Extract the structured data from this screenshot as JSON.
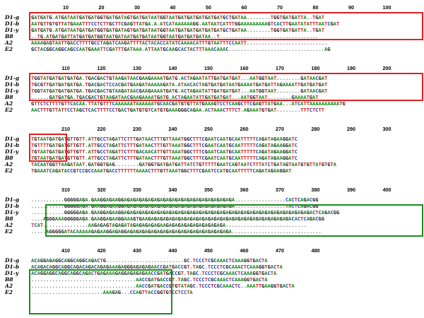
{
  "sequence_labels": [
    "D1-g",
    "D1-b",
    "D1-y",
    "B8",
    "A2",
    "E2"
  ],
  "colors": {
    "A": "#1a8a1a",
    "C": "#1c3fbf",
    "G": "#1a1a1a",
    "T": "#d42020",
    "red_box": "#e02020",
    "green_box": "#1e8a1e"
  },
  "blocks": [
    {
      "ruler": [
        "10",
        "20",
        "30",
        "40",
        "50",
        "60",
        "70",
        "80",
        "90",
        "100"
      ],
      "rows": [
        "GATGATG-ATGATAATGATGATGGTGATGATAGTGATGATAATGGTAATGATGATGATGATGATGCTGATAA--------TGGTGATGATTA--TGAT",
        "AATGTTGTGTTATGAAATTTCCTCTTGCTTCGAGTTATGA-A-ATCATAAAAAAGG-AATAATCATTTGGAAAAAAAAAGTCACTTGAATATATTTAATCGAT",
        "GATGATG-ATGATAATGATGATGGTGATGATAGTGATGATAATGGTAATGATGATGATGATGATGCTGATAA--------TGGTGATGATTA--TGAT",
        "--TG-ATGATGATTATGATGATGGTAATGATAATGATGATAATGGTAATGATGATGATAA--T---------------------------------",
        "AAAAGAGTAATTGACCTTTTGCCTAGATCAAGATTTTACTACACCATATCAAAACATTTGTAATTTCCAATT---------------------------",
        "GCTACGGCAGGCAGCCAATGAAATTCGATTTGATAAA-ATTAATGCAAGCACTACTTTAAACAAAC--------------------------------AG"
      ]
    },
    {
      "ruler": [
        "110",
        "120",
        "130",
        "140",
        "150",
        "160",
        "170",
        "180",
        "190",
        "200"
      ],
      "rows": [
        "TGGTATGATGATGATGA-TGACGACTGTAAGATAACGAAGAAAATGATG-ACTAGAATATTGATGATGAT---AATGGTAAT--------GATAACGAT",
        "TGCGTTGATGATGATGA-TGACGACTCCACGATGAAGATAAAAAGATA-ATAACACTAGTGATGATAATGAAAATGATGATTAGAAAATTGATGATGAT",
        "TGGTATGATGATGATGA-TGACGACTGTAAGATAACGAAGAAAATGATG-ACTAGAATATTGATGATGAT---AATGGTAAT--------GATAACGAT",
        "------GATGATGA-TGACGACTGTAAGATAACGAAGAAAATGATG-ACTAGAATATTGATGATGAT---AATGGTAAT--------GAAAATGAT",
        "GTTCTCTTTTGTTCACAA-TTATGTTTCAAAAAATAAAAAATGCAACGATGTGTTATGAAAGTCCTCAAGCTTCGAGTTATGAA---ATCATTAAAAAAAAAATG",
        "AACTTTGTTATTCCTAGCTCACTTTTCCTGACTGATGTGTCATGTGAAAGGGCAGAA-ACTAAACTTTCT-AGAAATGTGAT--------TTTCTCTT"
      ]
    },
    {
      "ruler": [
        "210",
        "220",
        "230",
        "240",
        "250",
        "260",
        "270",
        "280",
        "290",
        "300"
      ],
      "rows": [
        "TGTAATGATGATGTTGTT-ATTGCCTAGATTCTTTGATAACTTTGTTAAATGGCTTTCGAATCAATGCAATTTTTCAGATAGAAGGATC",
        "TGTTTTGATGATGTTGTT-ATTGCCTAGATTCTTTGATAACTTTGTTAAATGGCTTTCGAATCAATGCAATTTTTCAGATAGAAGGATC",
        "TGTAATGATGATGTTGTT-ATTGCCTAGATTCTTTGACAACATTGTTAAATGGCTTTCGAATCAATGCAATTTTTCAGATAGAAGGATC",
        "TGTAATGATGATGTTGTT-ATTGCCTAGATTCTTTGATAACTTTGTTAAATGGCTTTCGAATCAATGCAATTTTTCAGATAGAAGGATC",
        "TACAATGGTTAAGATAAT-GATGGTGAG--------GATGGTGATGATGATTATCTGTTTTTGAATCAGTAATCTTTATCTGATAGTAATGTGTTATGTGTA",
        "TGAAATCAGATACCGTCCGCCAAATGACCTTTTTTAAAACTTTGTTAAATGGCTTTCGAATCCATGCAATTTTTCAGATAGAAGGAT"
      ]
    },
    {
      "ruler": [
        "310",
        "320",
        "330",
        "340",
        "350",
        "360",
        "370",
        "380",
        "390",
        "400"
      ],
      "rows": [
        "-----------GGGGGAGA-GAAGGAGAAGGAGAGAGAGAGAGAGAGAGAGAGAGAGAGAGAGAGAGA-----------------CACTCAGACGG",
        "-----------GGGGGAGA-GAAGGAGAAGGAGAGAGAGAGAGAGAGAGAGAGAGAGAGAGAGAGAGA-----------------TACTCAGACGG",
        "-----------GGGGGAGA-GAAGGAGAAGGAGAGAGAGAGAGAGAGAGAGAGAGAGAGAGAGAGAGAGAGAGAGAGAGAGAGAGAGAGAGAGACTCAGACGG",
        "----AGGGAAAGGGGGAGA-GAAGGAGAAGGAAAGTGAAGAGAGAGAGAGAGAGAGAGAGAGAGAGAGAGAGAGAGAGAGAGAGAGACACTCAGACGG",
        "TCAT---------------AAGAGAGTAGAGATAGAGAGAGAGAAGAGAGAGAGAGAGAGAGAGA---------------------------",
        "-----AGGGGGATACAAAAAGAGAAGGAGAGGAGAGAGAGAGAGAGAGAGAGAGAGAGAGAGAGAGA------------------------------"
      ]
    },
    {
      "ruler": [
        "410",
        "420",
        "430",
        "440",
        "450",
        "460",
        "470",
        "480"
      ],
      "rows": [
        "ACAGGAGAGGCAGGCAGGCAGACTG--------------------------GC-TCCCTCGCAAACTCAAAGGTGACTA",
        "ACAGACAGGCAGGCAGACAGACAGAGAAAGAGGGAGAGAGAACCGATGACCGT-TAGC-TCCCTCGCAAACTCAAAGGTGACTA",
        "ACAGGAGGCAGGCAGGCAGACTGAGAAAGAGGAGAGAGAACCGATGACCGT-TAGC-TCCCTCGCAAACTCAAAGGTGACTA",
        "-----------------------------------AACCGATGACCGT-TAGC-TCCCTCGCAAACTCAAAGGTGACTA",
        "-----------------------------------AACCGATGACCGTGTATAGC-TCCCTCGCAAACTC--AAATTGAAGGTGACTA",
        "------------------------AAAGAG---CCAGTTACCGGTGTCCTCCTA"
      ]
    }
  ]
}
